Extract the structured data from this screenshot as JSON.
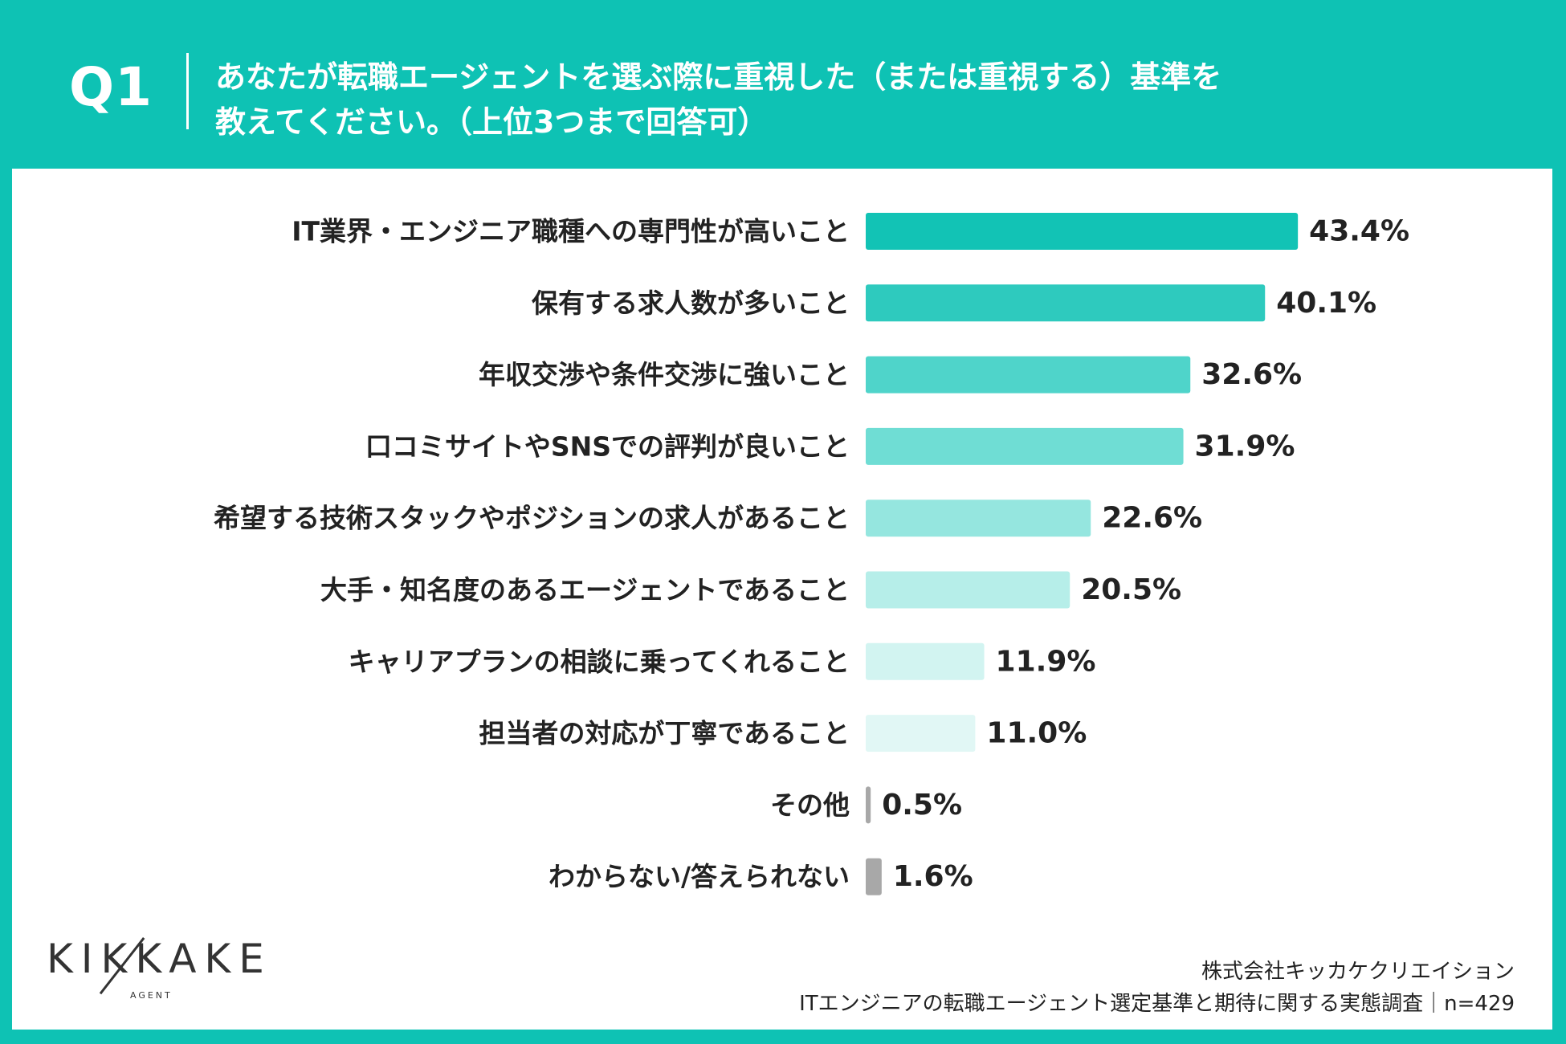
{
  "header": {
    "q_number": "Q1",
    "question_line1": "あなたが転職エージェントを選ぶ際に重視した（または重視する）基準を",
    "question_line2": "教えてください。（上位3つまで回答可）"
  },
  "chart_data": {
    "type": "bar",
    "orientation": "horizontal",
    "categories": [
      "IT業界・エンジニア職種への専門性が高いこと",
      "保有する求人数が多いこと",
      "年収交渉や条件交渉に強いこと",
      "口コミサイトやSNSでの評判が良いこと",
      "希望する技術スタックやポジションの求人があること",
      "大手・知名度のあるエージェントであること",
      "キャリアプランの相談に乗ってくれること",
      "担当者の対応が丁寧であること",
      "その他",
      "わからない/答えられない"
    ],
    "values": [
      43.4,
      40.1,
      32.6,
      31.9,
      22.6,
      20.5,
      11.9,
      11.0,
      0.5,
      1.6
    ],
    "value_labels": [
      "43.4%",
      "40.1%",
      "32.6%",
      "31.9%",
      "22.6%",
      "20.5%",
      "11.9%",
      "11.0%",
      "0.5%",
      "1.6%"
    ],
    "bar_colors": [
      "#12c3b5",
      "#2ecabe",
      "#4fd4ca",
      "#6fddd4",
      "#95e6df",
      "#b6eee9",
      "#d2f4f1",
      "#e1f7f5",
      "#a8a8a8",
      "#a8a8a8"
    ],
    "xlim": [
      0,
      45
    ],
    "grid": false,
    "legend": "none"
  },
  "footer": {
    "logo_text": "KIKKAKE",
    "logo_sub": "AGENT",
    "company": "株式会社キッカケクリエイション",
    "survey": "ITエンジニアの転職エージェント選定基準と期待に関する実態調査｜n=429"
  },
  "colors": {
    "brand": "#0ec2b4",
    "panel": "#ffffff",
    "text": "#222222"
  }
}
